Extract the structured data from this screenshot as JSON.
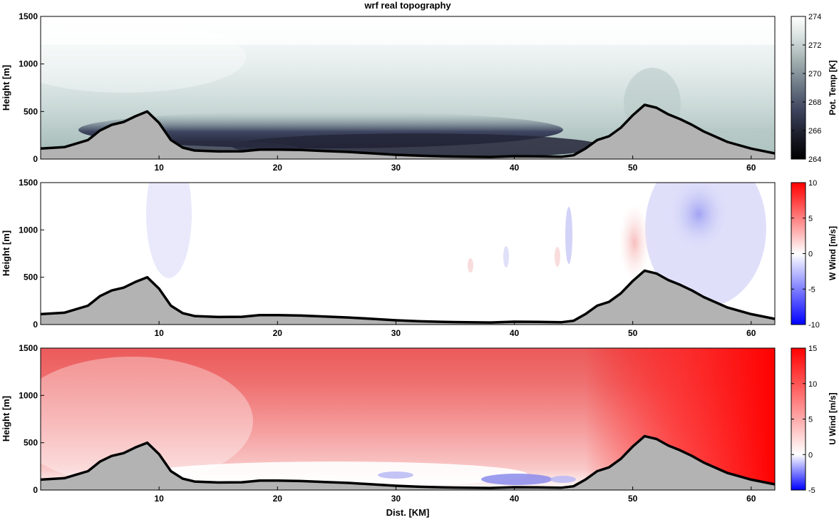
{
  "chart_data": {
    "type": "heatmap",
    "title": "wrf real topography",
    "xlabel": "Dist. [KM]",
    "xlim": [
      0,
      62
    ],
    "x_ticks": [
      10,
      20,
      30,
      40,
      50,
      60
    ],
    "terrain": {
      "x": [
        0,
        2,
        4,
        5,
        6,
        7,
        8,
        9,
        10,
        11,
        12,
        13,
        15,
        17,
        18.5,
        20,
        22,
        24,
        26,
        28,
        30,
        32,
        34,
        36,
        38,
        40,
        42,
        44,
        45,
        46,
        47,
        48,
        49,
        50,
        51,
        52,
        53,
        54,
        55,
        56,
        58,
        60,
        62
      ],
      "height_m": [
        110,
        125,
        200,
        300,
        360,
        390,
        450,
        500,
        380,
        200,
        120,
        90,
        80,
        82,
        100,
        100,
        95,
        85,
        75,
        60,
        45,
        35,
        28,
        25,
        22,
        30,
        28,
        25,
        40,
        110,
        200,
        240,
        330,
        460,
        570,
        540,
        470,
        420,
        360,
        290,
        180,
        110,
        60
      ]
    },
    "panels": [
      {
        "name": "potential-temperature",
        "ylabel": "Height [m]",
        "ylim": [
          0,
          1500
        ],
        "y_ticks": [
          0,
          500,
          1000,
          1500
        ],
        "colorbar": {
          "label": "Pot. Temp [K]",
          "range": [
            264,
            274
          ],
          "ticks": [
            "274",
            "272",
            "270",
            "268",
            "266",
            "264"
          ],
          "colors": [
            "#000000",
            "#1c1d2b",
            "#404660",
            "#6f7b88",
            "#a6b3b3",
            "#d6e0de",
            "#ffffff"
          ]
        }
      },
      {
        "name": "w-wind",
        "ylabel": "Height [m]",
        "ylim": [
          0,
          1500
        ],
        "y_ticks": [
          0,
          500,
          1000,
          1500
        ],
        "colorbar": {
          "label": "W Wind [m/s]",
          "range": [
            -10,
            10
          ],
          "ticks": [
            "10",
            "5",
            "0",
            "-5",
            "-10"
          ],
          "colors": [
            "#0000ff",
            "#ffffff",
            "#ff0000"
          ]
        }
      },
      {
        "name": "u-wind",
        "ylabel": "Height [m]",
        "ylim": [
          0,
          1500
        ],
        "y_ticks": [
          0,
          500,
          1000,
          1500
        ],
        "colorbar": {
          "label": "U Wind [m/s]",
          "range": [
            -5,
            15
          ],
          "ticks": [
            "15",
            "10",
            "5",
            "0",
            "-5"
          ],
          "colors": [
            "#0000ff",
            "#ffffff",
            "#ff0000"
          ]
        }
      }
    ]
  }
}
